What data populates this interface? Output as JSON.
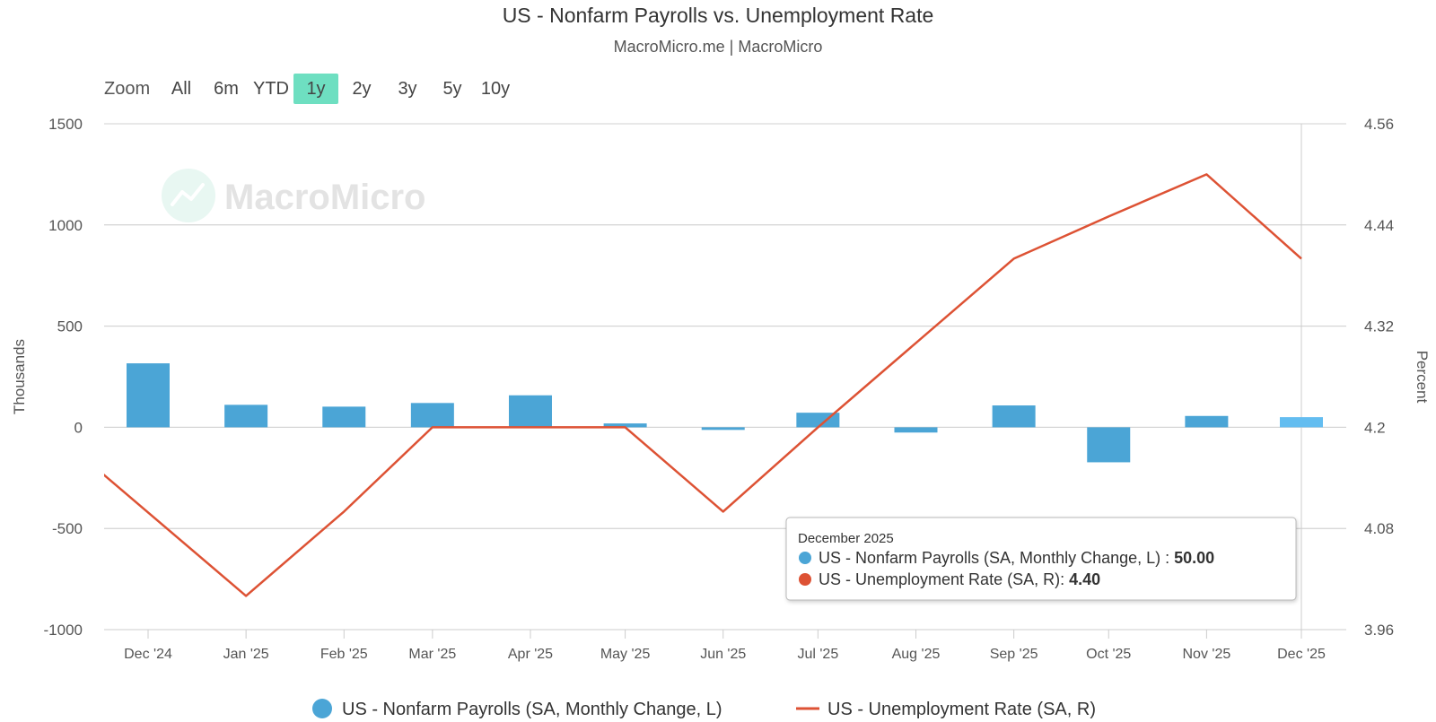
{
  "title": "US - Nonfarm Payrolls vs. Unemployment Rate",
  "subtitle": "MacroMicro.me | MacroMicro",
  "watermark": "MacroMicro",
  "zoom": {
    "label": "Zoom",
    "options": [
      "All",
      "6m",
      "YTD",
      "1y",
      "2y",
      "3y",
      "5y",
      "10y"
    ],
    "selected": "1y"
  },
  "colors": {
    "payrolls": "#4ba5d6",
    "payrolls_highlight": "#63bdf0",
    "unemployment": "#dd5234",
    "zoom_selected": "#6edfc1",
    "grid": "#e6e6e6"
  },
  "tooltip": {
    "date": "December 2025",
    "rows": [
      {
        "label": "US - Nonfarm Payrolls (SA, Monthly Change, L) : ",
        "value": "50.00"
      },
      {
        "label": "US - Unemployment Rate (SA, R): ",
        "value": "4.40"
      }
    ]
  },
  "chart_data": {
    "type": "bar",
    "title": "US - Nonfarm Payrolls vs. Unemployment Rate",
    "categories": [
      "Dec '24",
      "Jan '25",
      "Feb '25",
      "Mar '25",
      "Apr '25",
      "May '25",
      "Jun '25",
      "Jul '25",
      "Aug '25",
      "Sep '25",
      "Oct '25",
      "Nov '25",
      "Dec '25"
    ],
    "x_axis": {
      "labels": [
        "Dec '24",
        "Jan '25",
        "Feb '25",
        "Mar '25",
        "Apr '25",
        "May '25",
        "Jun '25",
        "Jul '25",
        "Aug '25",
        "Sep '25",
        "Oct '25",
        "Nov '25",
        "Dec '25"
      ]
    },
    "y_left": {
      "label": "Thousands",
      "ylim": [
        -1000,
        1500
      ],
      "ticks": [
        1500,
        1000,
        500,
        0,
        -500,
        -1000
      ],
      "tick_labels": [
        "1500",
        "1000",
        "500",
        "0",
        "-500",
        "-1000"
      ]
    },
    "y_right": {
      "label": "Percent",
      "ylim": [
        3.96,
        4.56
      ],
      "ticks": [
        4.56,
        4.44,
        4.32,
        4.2,
        4.08,
        3.96
      ],
      "tick_labels": [
        "4.56",
        "4.44",
        "4.32",
        "4.2",
        "4.08",
        "3.96"
      ]
    },
    "series": [
      {
        "name": "US - Nonfarm Payrolls (SA, Monthly Change, L)",
        "type": "bar",
        "axis": "left",
        "x": [
          "2024-12-01",
          "2025-01-01",
          "2025-02-01",
          "2025-03-01",
          "2025-04-01",
          "2025-05-01",
          "2025-06-01",
          "2025-07-01",
          "2025-08-01",
          "2025-09-01",
          "2025-10-01",
          "2025-11-01",
          "2025-12-01"
        ],
        "values": [
          316,
          111,
          102,
          120,
          158,
          19,
          -13,
          72,
          -26,
          108,
          -173,
          56,
          50
        ]
      },
      {
        "name": "US - Unemployment Rate (SA, R)",
        "type": "line",
        "axis": "right",
        "x": [
          "2024-11-15",
          "2025-01-01",
          "2025-02-01",
          "2025-03-01",
          "2025-04-01",
          "2025-05-01",
          "2025-06-01",
          "2025-07-01",
          "2025-08-01",
          "2025-09-01",
          "2025-10-01",
          "2025-11-01",
          "2025-12-01"
        ],
        "values": [
          4.15,
          4.0,
          4.1,
          4.2,
          4.2,
          4.2,
          4.1,
          4.2,
          4.3,
          4.4,
          4.45,
          4.5,
          4.4
        ]
      }
    ],
    "grid": true,
    "legend": "bottom-center"
  }
}
